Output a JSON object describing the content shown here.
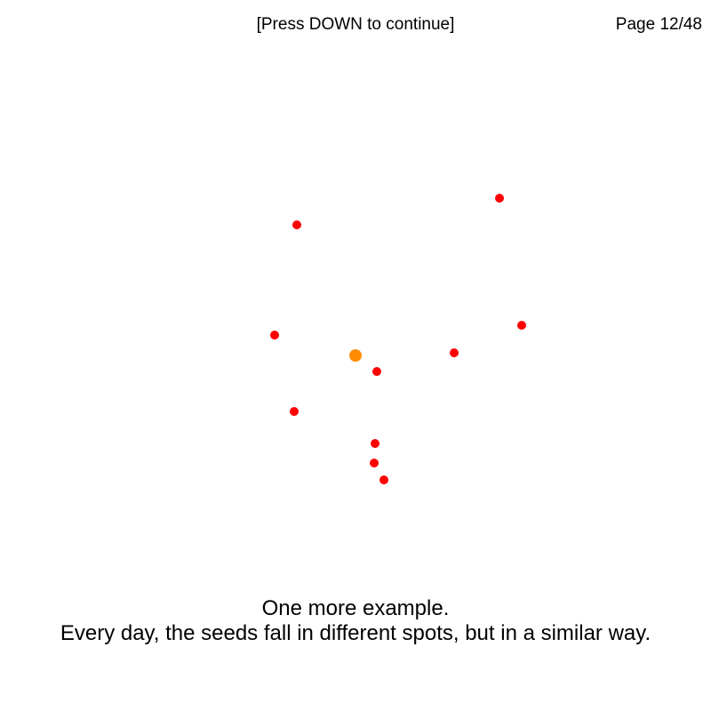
{
  "header": {
    "prompt": "[Press DOWN to continue]",
    "page_counter": "Page 12/48"
  },
  "caption": {
    "line1": "One more example.",
    "line2": "Every day, the seeds fall in different spots, but in a similar way."
  },
  "colors": {
    "seed": "#ff0000",
    "center": "#ff8c00",
    "background": "#ffffff"
  },
  "scene": {
    "center_marker": {
      "color_name": "orange"
    },
    "seeds": {
      "count": 10,
      "color_name": "red"
    }
  }
}
